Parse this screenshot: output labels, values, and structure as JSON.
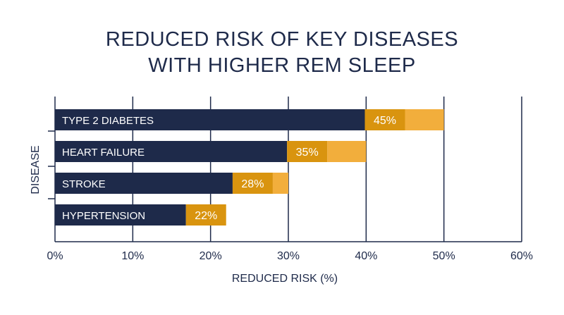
{
  "chart_data": {
    "type": "bar",
    "orientation": "horizontal",
    "title": "REDUCED RISK OF KEY DISEASES WITH HIGHER REM SLEEP",
    "title_lines": [
      "REDUCED RISK OF KEY DISEASES",
      "WITH HIGHER REM SLEEP"
    ],
    "xlabel": "REDUCED RISK (%)",
    "ylabel": "DISEASE",
    "xlim": [
      0,
      60
    ],
    "xticks": [
      0,
      10,
      20,
      30,
      40,
      50,
      60
    ],
    "xtick_labels": [
      "0%",
      "10%",
      "20%",
      "30%",
      "40%",
      "50%",
      "60%"
    ],
    "grid": "vertical",
    "categories": [
      "TYPE 2 DIABETES",
      "HEART FAILURE",
      "STROKE",
      "HYPERTENSION"
    ],
    "values": [
      45,
      35,
      28,
      22
    ],
    "value_labels": [
      "45%",
      "35%",
      "28%",
      "22%"
    ],
    "overlay_extent": [
      50,
      40,
      30,
      22
    ],
    "colors": {
      "bar": "#1e2a4a",
      "label_box": "#d9940f",
      "overlay": "#f2ae3c",
      "grid": "#1e2a4a",
      "text": "#1e2a4a"
    }
  }
}
